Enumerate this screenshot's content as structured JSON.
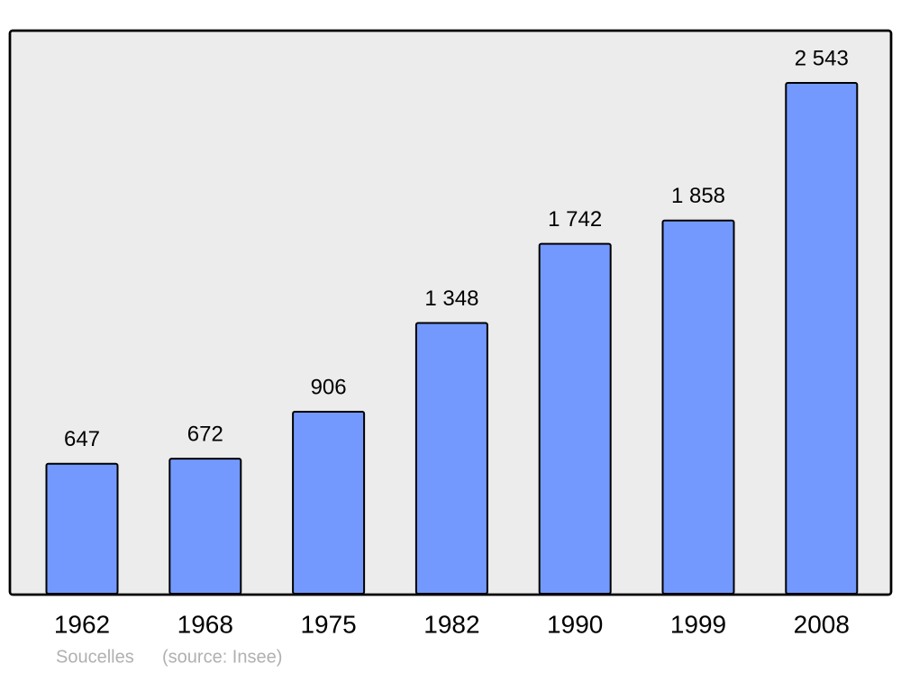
{
  "chart_data": {
    "type": "bar",
    "categories": [
      "1962",
      "1968",
      "1975",
      "1982",
      "1990",
      "1999",
      "2008"
    ],
    "values": [
      647,
      672,
      906,
      1348,
      1742,
      1858,
      2543
    ],
    "value_labels": [
      "647",
      "672",
      "906",
      "1 348",
      "1 742",
      "1 858",
      "2 543"
    ],
    "color": "#7399ff",
    "annotations": [
      "Soucelles",
      "(source: Insee)"
    ]
  }
}
